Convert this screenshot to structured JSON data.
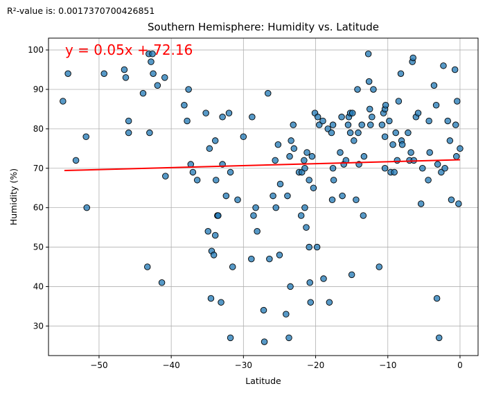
{
  "r_squared_text": "R²-value is: 0.0017370700426851",
  "chart_data": {
    "type": "scatter",
    "title": "Southern Hemisphere: Humidity vs. Latitude",
    "xlabel": "Latitude",
    "ylabel": "Humidity (%)",
    "xlim": [
      -57,
      2.5
    ],
    "ylim": [
      22.5,
      103
    ],
    "xticks": [
      -50,
      -40,
      -30,
      -20,
      -10,
      0
    ],
    "yticks": [
      30,
      40,
      50,
      60,
      70,
      80,
      90,
      100
    ],
    "xtick_labels": [
      "−50",
      "−40",
      "−30",
      "−20",
      "−10",
      "0"
    ],
    "ytick_labels": [
      "30",
      "40",
      "50",
      "60",
      "70",
      "80",
      "90",
      "100"
    ],
    "grid": true,
    "marker_color": "#1f77b4",
    "regression": {
      "equation_text": "y = 0.05x + 72.16",
      "slope": 0.05,
      "intercept": 72.16,
      "x_range": [
        -54.8,
        0
      ],
      "color": "#ff0000"
    },
    "points": [
      [
        -55.0,
        87
      ],
      [
        -54.3,
        94
      ],
      [
        -53.2,
        72
      ],
      [
        -51.8,
        78
      ],
      [
        -51.7,
        60
      ],
      [
        -49.3,
        94
      ],
      [
        -46.5,
        95
      ],
      [
        -46.3,
        93
      ],
      [
        -45.9,
        82
      ],
      [
        -45.9,
        79
      ],
      [
        -43.9,
        89
      ],
      [
        -43.3,
        45
      ],
      [
        -43.1,
        99
      ],
      [
        -43.0,
        79
      ],
      [
        -42.8,
        97
      ],
      [
        -42.6,
        99
      ],
      [
        -42.5,
        94
      ],
      [
        -41.9,
        91
      ],
      [
        -41.3,
        41
      ],
      [
        -40.9,
        93
      ],
      [
        -40.8,
        68
      ],
      [
        -38.2,
        86
      ],
      [
        -37.8,
        82
      ],
      [
        -37.6,
        90
      ],
      [
        -37.3,
        71
      ],
      [
        -37.0,
        69
      ],
      [
        -36.4,
        67
      ],
      [
        -35.2,
        84
      ],
      [
        -34.9,
        54
      ],
      [
        -34.7,
        75
      ],
      [
        -34.5,
        37
      ],
      [
        -34.4,
        49
      ],
      [
        -34.1,
        48
      ],
      [
        -33.9,
        53
      ],
      [
        -33.8,
        67
      ],
      [
        -33.9,
        77
      ],
      [
        -33.6,
        58
      ],
      [
        -33.5,
        58
      ],
      [
        -33.1,
        36
      ],
      [
        -32.9,
        71
      ],
      [
        -32.9,
        83
      ],
      [
        -32.4,
        63
      ],
      [
        -32.0,
        84
      ],
      [
        -31.8,
        69
      ],
      [
        -31.8,
        27
      ],
      [
        -31.5,
        45
      ],
      [
        -30.8,
        62
      ],
      [
        -30.0,
        78
      ],
      [
        -28.9,
        47
      ],
      [
        -28.8,
        83
      ],
      [
        -28.6,
        58
      ],
      [
        -28.3,
        60
      ],
      [
        -28.1,
        54
      ],
      [
        -27.2,
        34
      ],
      [
        -27.1,
        26
      ],
      [
        -26.6,
        89
      ],
      [
        -26.4,
        47
      ],
      [
        -25.9,
        63
      ],
      [
        -25.6,
        72
      ],
      [
        -25.5,
        60
      ],
      [
        -25.2,
        76
      ],
      [
        -25.0,
        48
      ],
      [
        -24.9,
        66
      ],
      [
        -24.1,
        33
      ],
      [
        -23.9,
        63
      ],
      [
        -23.7,
        27
      ],
      [
        -23.6,
        73
      ],
      [
        -23.5,
        40
      ],
      [
        -23.4,
        77
      ],
      [
        -23.1,
        81
      ],
      [
        -23.0,
        75
      ],
      [
        -22.3,
        69
      ],
      [
        -22.0,
        58
      ],
      [
        -21.9,
        69
      ],
      [
        -21.6,
        72
      ],
      [
        -21.5,
        70
      ],
      [
        -21.5,
        60
      ],
      [
        -21.2,
        74
      ],
      [
        -21.3,
        55
      ],
      [
        -20.9,
        67
      ],
      [
        -20.9,
        50
      ],
      [
        -20.8,
        41
      ],
      [
        -20.7,
        36
      ],
      [
        -20.5,
        73
      ],
      [
        -20.3,
        65
      ],
      [
        -20.1,
        84
      ],
      [
        -19.8,
        50
      ],
      [
        -19.7,
        83
      ],
      [
        -19.5,
        81
      ],
      [
        -19.0,
        82
      ],
      [
        -18.9,
        42
      ],
      [
        -18.3,
        80
      ],
      [
        -18.1,
        36
      ],
      [
        -17.8,
        79
      ],
      [
        -17.7,
        62
      ],
      [
        -17.6,
        81
      ],
      [
        -17.6,
        70
      ],
      [
        -17.5,
        67
      ],
      [
        -16.6,
        74
      ],
      [
        -16.4,
        83
      ],
      [
        -16.3,
        63
      ],
      [
        -16.1,
        71
      ],
      [
        -15.8,
        72
      ],
      [
        -15.5,
        81
      ],
      [
        -15.4,
        83
      ],
      [
        -15.2,
        84
      ],
      [
        -15.2,
        79
      ],
      [
        -15.0,
        43
      ],
      [
        -14.9,
        84
      ],
      [
        -14.7,
        77
      ],
      [
        -14.4,
        62
      ],
      [
        -14.2,
        90
      ],
      [
        -14.1,
        79
      ],
      [
        -14.0,
        71
      ],
      [
        -13.6,
        81
      ],
      [
        -13.4,
        58
      ],
      [
        -13.3,
        73
      ],
      [
        -12.7,
        99
      ],
      [
        -12.6,
        92
      ],
      [
        -12.5,
        85
      ],
      [
        -12.4,
        81
      ],
      [
        -12.2,
        83
      ],
      [
        -12.0,
        90
      ],
      [
        -11.2,
        45
      ],
      [
        -10.8,
        81
      ],
      [
        -10.6,
        84
      ],
      [
        -10.4,
        85
      ],
      [
        -10.4,
        70
      ],
      [
        -10.4,
        78
      ],
      [
        -10.3,
        86
      ],
      [
        -9.8,
        82
      ],
      [
        -9.6,
        69
      ],
      [
        -9.3,
        76
      ],
      [
        -9.1,
        69
      ],
      [
        -8.9,
        79
      ],
      [
        -8.7,
        72
      ],
      [
        -8.5,
        87
      ],
      [
        -8.2,
        94
      ],
      [
        -8.1,
        77
      ],
      [
        -8.0,
        76
      ],
      [
        -7.2,
        79
      ],
      [
        -7.0,
        72
      ],
      [
        -6.8,
        74
      ],
      [
        -6.6,
        97
      ],
      [
        -6.5,
        98
      ],
      [
        -6.4,
        72
      ],
      [
        -6.1,
        83
      ],
      [
        -5.8,
        84
      ],
      [
        -5.4,
        61
      ],
      [
        -5.2,
        70
      ],
      [
        -4.4,
        67
      ],
      [
        -4.3,
        82
      ],
      [
        -4.2,
        74
      ],
      [
        -3.6,
        91
      ],
      [
        -3.3,
        86
      ],
      [
        -3.2,
        37
      ],
      [
        -3.1,
        71
      ],
      [
        -2.9,
        27
      ],
      [
        -2.6,
        69
      ],
      [
        -2.3,
        96
      ],
      [
        -2.1,
        70
      ],
      [
        -1.7,
        82
      ],
      [
        -1.4,
        77
      ],
      [
        -1.2,
        62
      ],
      [
        -0.7,
        95
      ],
      [
        -0.6,
        81
      ],
      [
        -0.5,
        73
      ],
      [
        -0.4,
        87
      ],
      [
        -0.2,
        61
      ],
      [
        0.0,
        75
      ]
    ]
  }
}
